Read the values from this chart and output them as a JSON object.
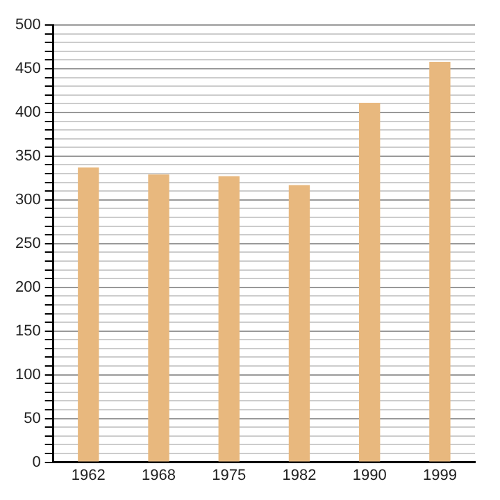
{
  "chart_data": {
    "type": "bar",
    "categories": [
      "1962",
      "1968",
      "1975",
      "1982",
      "1990",
      "1999"
    ],
    "values": [
      337,
      329,
      327,
      317,
      411,
      458
    ],
    "color": "#e8b87e",
    "ylim": [
      0,
      500
    ],
    "yticks": [
      0,
      {
        "value": 10,
        "label": null
      },
      {
        "value": 20,
        "label": null
      },
      {
        "value": 30,
        "label": null
      },
      {
        "value": 40,
        "label": null
      },
      50,
      {
        "value": 60,
        "label": null
      },
      {
        "value": 70,
        "label": null
      },
      {
        "value": 80,
        "label": null
      },
      {
        "value": 90,
        "label": null
      },
      100,
      {
        "value": 110,
        "label": null
      },
      {
        "value": 120,
        "label": null
      },
      {
        "value": 130,
        "label": null
      },
      {
        "value": 140,
        "label": null
      },
      150,
      {
        "value": 160,
        "label": null
      },
      {
        "value": 170,
        "label": null
      },
      {
        "value": 180,
        "label": null
      },
      {
        "value": 190,
        "label": null
      },
      200,
      {
        "value": 210,
        "label": null
      },
      {
        "value": 220,
        "label": null
      },
      {
        "value": 230,
        "label": null
      },
      {
        "value": 240,
        "label": null
      },
      250,
      {
        "value": 260,
        "label": null
      },
      {
        "value": 270,
        "label": null
      },
      {
        "value": 280,
        "label": null
      },
      {
        "value": 290,
        "label": null
      },
      300,
      {
        "value": 310,
        "label": null
      },
      {
        "value": 320,
        "label": null
      },
      {
        "value": 330,
        "label": null
      },
      {
        "value": 340,
        "label": null
      },
      350,
      {
        "value": 360,
        "label": null
      },
      {
        "value": 370,
        "label": null
      },
      {
        "value": 380,
        "label": null
      },
      {
        "value": 390,
        "label": null
      },
      400,
      {
        "value": 410,
        "label": null
      },
      {
        "value": 420,
        "label": null
      },
      {
        "value": 430,
        "label": null
      },
      {
        "value": 440,
        "label": null
      },
      450,
      {
        "value": 460,
        "label": null
      },
      {
        "value": 470,
        "label": null
      },
      {
        "value": 480,
        "label": null
      },
      {
        "value": 490,
        "label": null
      },
      500
    ],
    "grid": "y"
  }
}
